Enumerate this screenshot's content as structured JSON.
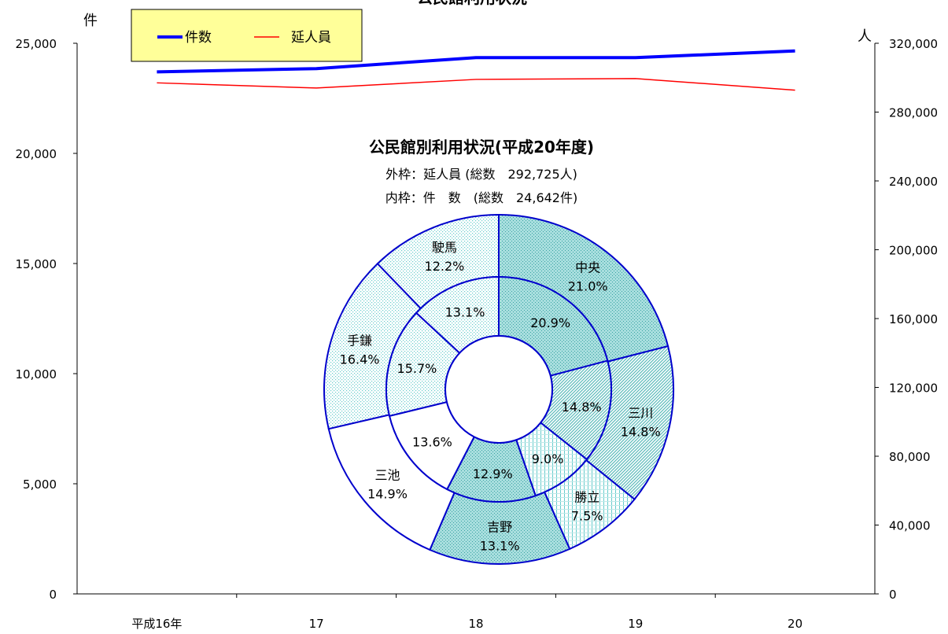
{
  "chart_data": [
    {
      "type": "line",
      "title": "公民館利用状況",
      "categories": [
        "平成16年",
        "17",
        "18",
        "19",
        "20"
      ],
      "y_left": {
        "unit": "件",
        "ylim": [
          0,
          25000
        ],
        "ticks": [
          "0",
          "5,000",
          "10,000",
          "15,000",
          "20,000",
          "25,000"
        ]
      },
      "y_right": {
        "unit": "人",
        "ylim": [
          0,
          320000
        ],
        "ticks": [
          "0",
          "40,000",
          "80,000",
          "120,000",
          "160,000",
          "200,000",
          "240,000",
          "280,000",
          "320,000"
        ]
      },
      "series": [
        {
          "name": "件数",
          "axis": "left",
          "color": "#0000ff",
          "values": [
            23700,
            23850,
            24350,
            24350,
            24650
          ]
        },
        {
          "name": "延人員",
          "axis": "right",
          "color": "#ff0000",
          "values": [
            297000,
            294000,
            299000,
            299500,
            292725
          ]
        }
      ],
      "legend": "top-left",
      "grid": false
    },
    {
      "type": "pie",
      "title": "公民館別利用状況(平成20年度)",
      "subtitle_outer": "外枠：延人員 (総数　292,725人)",
      "subtitle_inner": "内枠：件　数　(総数　24,642件)",
      "categories": [
        "中央",
        "三川",
        "勝立",
        "吉野",
        "三池",
        "手鎌",
        "駛馬"
      ],
      "outer_values": [
        21.0,
        14.8,
        7.5,
        13.1,
        14.9,
        16.4,
        12.2
      ],
      "inner_values": [
        20.9,
        14.8,
        9.0,
        12.9,
        13.6,
        15.7,
        13.1
      ],
      "outer_labels": [
        "21.0%",
        "14.8%",
        "7.5%",
        "13.1%",
        "14.9%",
        "16.4%",
        "12.2%"
      ],
      "inner_labels": [
        "20.9%",
        "14.8%",
        "9.0%",
        "12.9%",
        "13.6%",
        "15.7%",
        "13.1%"
      ],
      "fills": [
        "cyan-dense",
        "cyan-hatch",
        "cyan-grid",
        "cyan-dense",
        "white",
        "cyan-dots",
        "cyan-dots"
      ]
    }
  ],
  "colors": {
    "frame": "#000000",
    "pie_stroke": "#0000cc",
    "legend_bg": "#ffff99",
    "cyan": "#66cccc"
  }
}
